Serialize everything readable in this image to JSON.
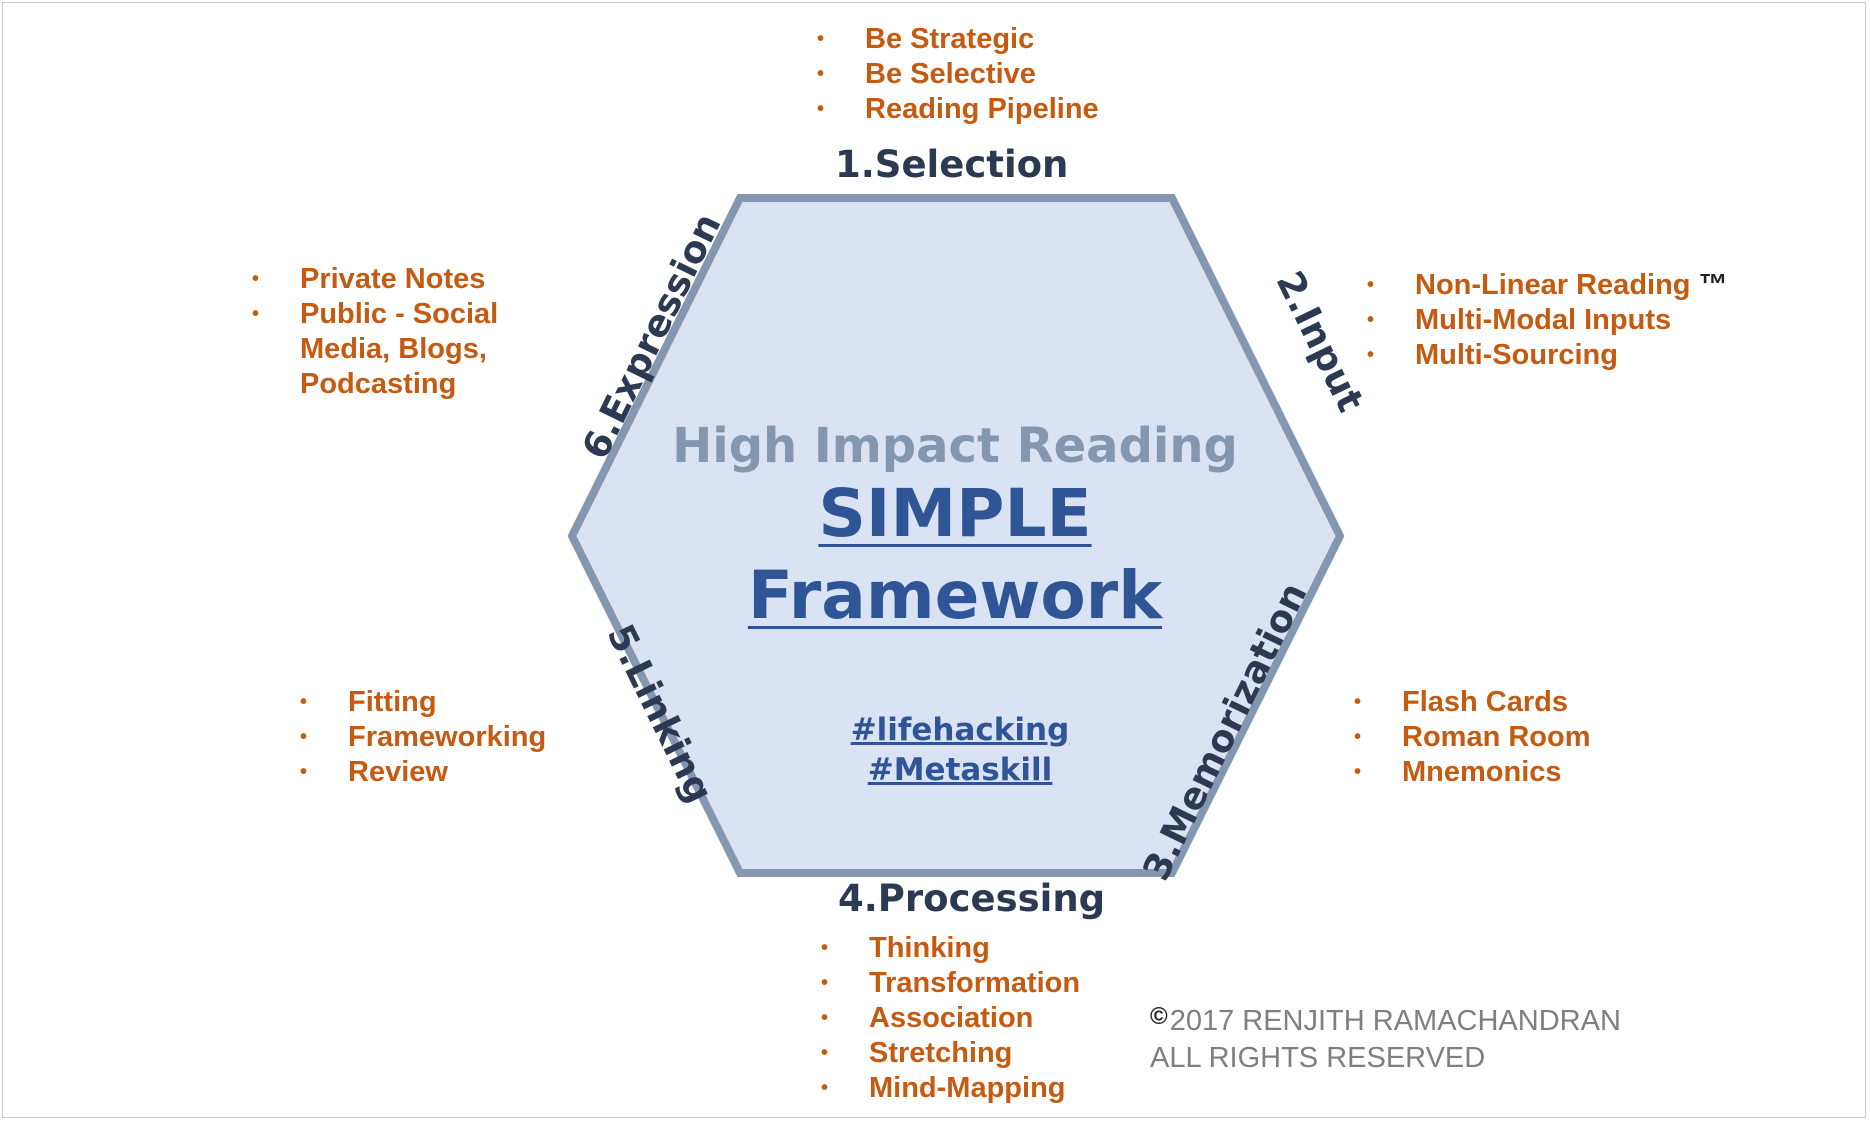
{
  "center": {
    "subtitle": "High Impact Reading",
    "title_line1": "SIMPLE",
    "title_line2": "Framework",
    "hashtag1": "#lifehacking",
    "hashtag2": "#Metaskill"
  },
  "steps": {
    "selection": {
      "label": "1.Selection",
      "items": [
        "Be Strategic",
        "Be Selective",
        "Reading Pipeline"
      ]
    },
    "input": {
      "label": "2.Input",
      "items": [
        "Non-Linear Reading",
        "Multi-Modal Inputs",
        "Multi-Sourcing"
      ],
      "trademark": "™"
    },
    "memorization": {
      "label": "3.Memorization",
      "items": [
        "Flash Cards",
        "Roman Room",
        "Mnemonics"
      ]
    },
    "processing": {
      "label": "4.Processing",
      "items": [
        "Thinking",
        "Transformation",
        "Association",
        "Stretching",
        "Mind-Mapping"
      ]
    },
    "linking": {
      "label": "5.Linking",
      "items": [
        "Fitting",
        "Frameworking",
        "Review"
      ]
    },
    "expression": {
      "label": "6.Expression",
      "items": [
        "Private Notes",
        "Public - Social",
        "Media, Blogs,",
        "Podcasting"
      ]
    }
  },
  "bullet_glyph": "•",
  "copyright": {
    "symbol": "©",
    "line1": "2017 RENJITH RAMACHANDRAN",
    "line2": "ALL RIGHTS RESERVED"
  },
  "colors": {
    "hex_fill": "#dae3f3",
    "hex_stroke": "#8497b0",
    "accent": "#c55a11",
    "title_blue": "#2f5597",
    "label_dark": "#2b3a52"
  }
}
